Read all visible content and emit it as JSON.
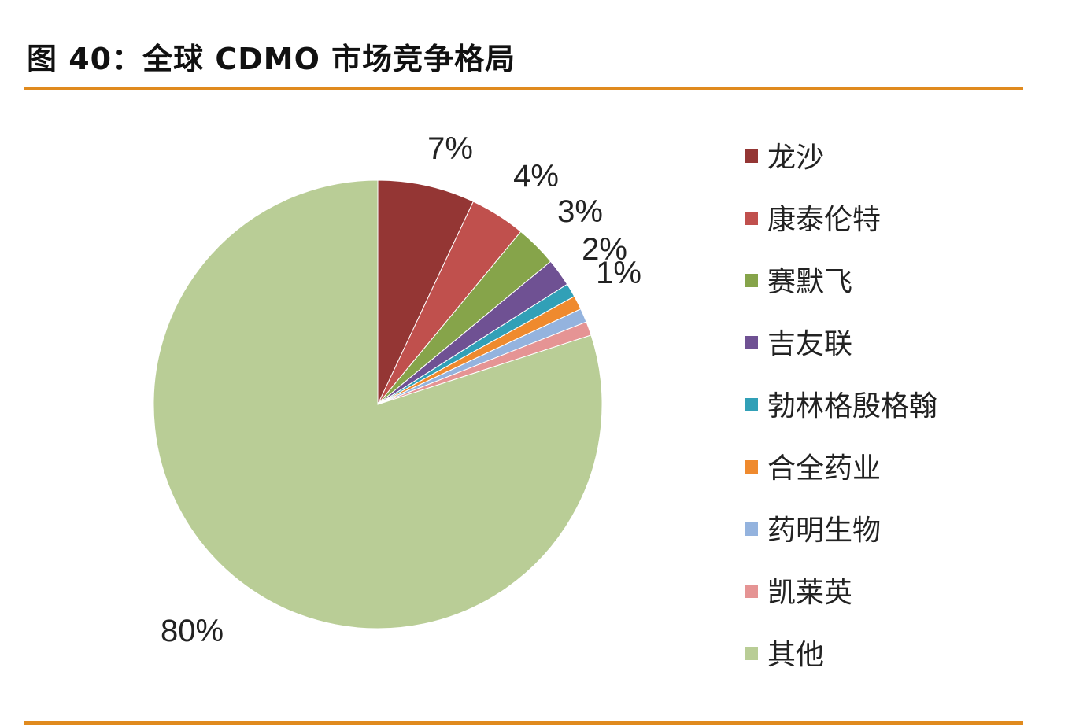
{
  "title": "图 40：全球 CDMO 市场竞争格局",
  "chart_data": {
    "type": "pie",
    "title": "图 40：全球 CDMO 市场竞争格局",
    "start": "12 o'clock, clockwise",
    "legend_position": "right",
    "slices": [
      {
        "name": "龙沙",
        "value": 7,
        "label": "7%",
        "color": "#943634"
      },
      {
        "name": "康泰伦特",
        "value": 4,
        "label": "4%",
        "color": "#c0504d"
      },
      {
        "name": "赛默飞",
        "value": 3,
        "label": "3%",
        "color": "#86a44a"
      },
      {
        "name": "吉友联",
        "value": 2,
        "label": "2%",
        "color": "#6f5193"
      },
      {
        "name": "勃林格殷格翰",
        "value": 1,
        "label": "1%",
        "color": "#31a0b7"
      },
      {
        "name": "合全药业",
        "value": 1,
        "label": "",
        "color": "#ef8a2e"
      },
      {
        "name": "药明生物",
        "value": 1,
        "label": "",
        "color": "#94b3de"
      },
      {
        "name": "凯莱英",
        "value": 1,
        "label": "",
        "color": "#e59494"
      },
      {
        "name": "其他",
        "value": 80,
        "label": "80%",
        "color": "#b9cd96"
      }
    ]
  }
}
